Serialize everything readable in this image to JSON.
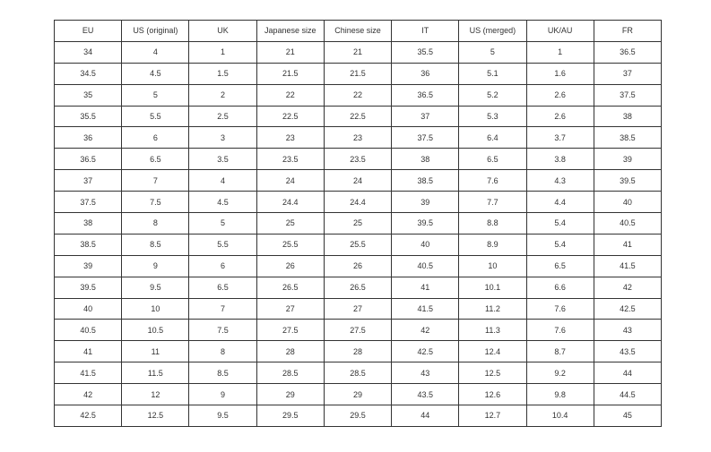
{
  "table": {
    "headers": [
      "EU",
      "US (original)",
      "UK",
      "Japanese size",
      "Chinese size",
      "IT",
      "US (merged)",
      "UK/AU",
      "FR"
    ],
    "rows": [
      [
        "34",
        "4",
        "1",
        "21",
        "21",
        "35.5",
        "5",
        "1",
        "36.5"
      ],
      [
        "34.5",
        "4.5",
        "1.5",
        "21.5",
        "21.5",
        "36",
        "5.1",
        "1.6",
        "37"
      ],
      [
        "35",
        "5",
        "2",
        "22",
        "22",
        "36.5",
        "5.2",
        "2.6",
        "37.5"
      ],
      [
        "35.5",
        "5.5",
        "2.5",
        "22.5",
        "22.5",
        "37",
        "5.3",
        "2.6",
        "38"
      ],
      [
        "36",
        "6",
        "3",
        "23",
        "23",
        "37.5",
        "6.4",
        "3.7",
        "38.5"
      ],
      [
        "36.5",
        "6.5",
        "3.5",
        "23.5",
        "23.5",
        "38",
        "6.5",
        "3.8",
        "39"
      ],
      [
        "37",
        "7",
        "4",
        "24",
        "24",
        "38.5",
        "7.6",
        "4.3",
        "39.5"
      ],
      [
        "37.5",
        "7.5",
        "4.5",
        "24.4",
        "24.4",
        "39",
        "7.7",
        "4.4",
        "40"
      ],
      [
        "38",
        "8",
        "5",
        "25",
        "25",
        "39.5",
        "8.8",
        "5.4",
        "40.5"
      ],
      [
        "38.5",
        "8.5",
        "5.5",
        "25.5",
        "25.5",
        "40",
        "8.9",
        "5.4",
        "41"
      ],
      [
        "39",
        "9",
        "6",
        "26",
        "26",
        "40.5",
        "10",
        "6.5",
        "41.5"
      ],
      [
        "39.5",
        "9.5",
        "6.5",
        "26.5",
        "26.5",
        "41",
        "10.1",
        "6.6",
        "42"
      ],
      [
        "40",
        "10",
        "7",
        "27",
        "27",
        "41.5",
        "11.2",
        "7.6",
        "42.5"
      ],
      [
        "40.5",
        "10.5",
        "7.5",
        "27.5",
        "27.5",
        "42",
        "11.3",
        "7.6",
        "43"
      ],
      [
        "41",
        "11",
        "8",
        "28",
        "28",
        "42.5",
        "12.4",
        "8.7",
        "43.5"
      ],
      [
        "41.5",
        "11.5",
        "8.5",
        "28.5",
        "28.5",
        "43",
        "12.5",
        "9.2",
        "44"
      ],
      [
        "42",
        "12",
        "9",
        "29",
        "29",
        "43.5",
        "12.6",
        "9.8",
        "44.5"
      ],
      [
        "42.5",
        "12.5",
        "9.5",
        "29.5",
        "29.5",
        "44",
        "12.7",
        "10.4",
        "45"
      ]
    ]
  }
}
